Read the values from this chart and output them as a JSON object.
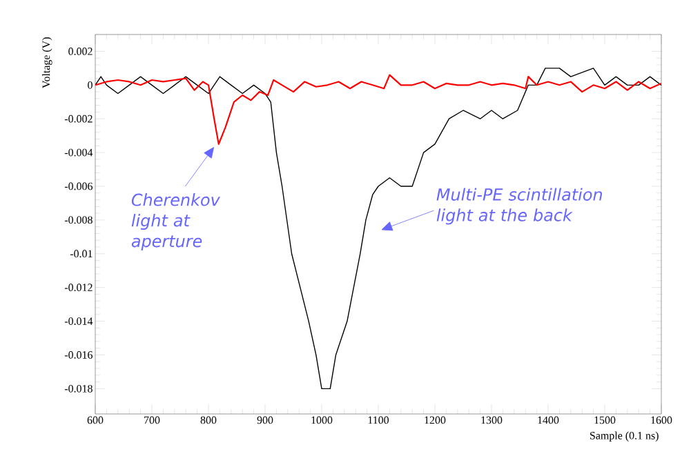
{
  "chart_data": {
    "type": "line",
    "xlabel": "Sample (0.1 ns)",
    "ylabel": "Voltage (V)",
    "xlim": [
      600,
      1600
    ],
    "ylim": [
      -0.0195,
      0.003
    ],
    "xticks": [
      600,
      700,
      800,
      900,
      1000,
      1100,
      1200,
      1300,
      1400,
      1500,
      1600
    ],
    "yticks": [
      0.002,
      0,
      -0.002,
      -0.004,
      -0.006,
      -0.008,
      -0.01,
      -0.012,
      -0.014,
      -0.016,
      -0.018
    ],
    "series": [
      {
        "color": "#000000",
        "x": [
          600,
          610,
          620,
          640,
          660,
          680,
          700,
          720,
          740,
          760,
          780,
          800,
          820,
          840,
          860,
          880,
          900,
          910,
          920,
          930,
          947,
          962,
          977,
          990,
          1000,
          1015,
          1025,
          1045,
          1068,
          1078,
          1090,
          1100,
          1120,
          1140,
          1160,
          1170,
          1180,
          1200,
          1225,
          1250,
          1280,
          1300,
          1320,
          1346,
          1365,
          1380,
          1395,
          1420,
          1440,
          1480,
          1500,
          1520,
          1540,
          1560,
          1580,
          1600
        ],
        "values": [
          0,
          0.0005,
          0,
          -0.0005,
          0,
          0.0005,
          0,
          -0.0005,
          0,
          0.0005,
          0,
          -0.0005,
          0.0005,
          0,
          -0.0005,
          0,
          -0.0005,
          -0.001,
          -0.004,
          -0.006,
          -0.01,
          -0.012,
          -0.014,
          -0.016,
          -0.018,
          -0.018,
          -0.016,
          -0.014,
          -0.01,
          -0.008,
          -0.0065,
          -0.006,
          -0.0055,
          -0.006,
          -0.006,
          -0.005,
          -0.004,
          -0.0035,
          -0.002,
          -0.0015,
          -0.002,
          -0.0015,
          -0.002,
          -0.0015,
          0,
          0,
          0.001,
          0.001,
          0.0005,
          0.001,
          0,
          0.0005,
          0,
          0,
          0.0005,
          0
        ]
      },
      {
        "color": "#ff0000",
        "x": [
          600,
          620,
          640,
          660,
          680,
          700,
          720,
          740,
          760,
          775,
          790,
          800,
          810,
          818,
          830,
          845,
          860,
          875,
          890,
          905,
          915,
          930,
          950,
          970,
          990,
          1010,
          1030,
          1050,
          1070,
          1090,
          1110,
          1120,
          1140,
          1160,
          1180,
          1200,
          1220,
          1240,
          1260,
          1280,
          1300,
          1320,
          1340,
          1360,
          1365,
          1380,
          1400,
          1420,
          1440,
          1460,
          1480,
          1500,
          1520,
          1540,
          1560,
          1580,
          1600
        ],
        "values": [
          0,
          0.0002,
          0.0003,
          0.0002,
          0,
          0.0003,
          0.0002,
          0.0003,
          0.0004,
          -0.0003,
          0.0002,
          0,
          -0.002,
          -0.0035,
          -0.0025,
          -0.001,
          -0.0006,
          -0.0009,
          -0.0004,
          -0.0006,
          0.0003,
          0,
          -0.0004,
          0.0002,
          -0.0001,
          0,
          0.0002,
          -0.0002,
          0.0002,
          0,
          -0.0002,
          0.0006,
          0,
          0,
          0.0002,
          -0.0002,
          0.0001,
          0,
          0,
          0.0002,
          0,
          0.0001,
          0,
          -0.0002,
          0.0005,
          0,
          0.0002,
          0,
          0.0002,
          -0.0004,
          0,
          -0.0002,
          0.0002,
          -0.0003,
          0.0002,
          -0.0002,
          0.0001
        ]
      }
    ],
    "annotations": [
      "Cherenkov light at aperture",
      "Multi-PE scintillation light at the back"
    ]
  }
}
